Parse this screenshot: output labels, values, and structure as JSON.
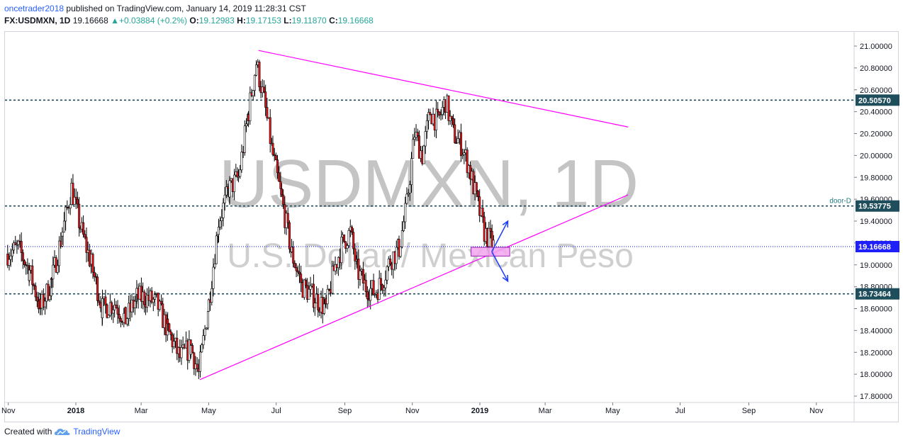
{
  "header": {
    "author": "oncetrader2018",
    "published": "published on TradingView.com, January 14, 2019 11:28:31 CST",
    "symbol": "FX:USDMXN, 1D",
    "last": "19.16668",
    "change": "+0.03884 (+0.2%)",
    "open_label": "O:",
    "open": "19.12983",
    "high_label": "H:",
    "high": "19.17153",
    "low_label": "L:",
    "low": "19.11870",
    "close_label": "C:",
    "close": "19.16668"
  },
  "watermark": {
    "symbol": "USDMXN, 1D",
    "description": "U.S. Dollar / Mexican Peso"
  },
  "footer": {
    "created_with": "Created with",
    "brand": "TradingView"
  },
  "colors": {
    "up": "#ffffff",
    "down": "#e8171c",
    "wick": "#000000",
    "trendline": "#ff00ff",
    "hline": "#1e4e5c",
    "price_line": "#0a0aff",
    "arrow": "#1a3cff",
    "box_fill": "#f4a6f0"
  },
  "chart_data": {
    "type": "candlestick",
    "symbol": "USDMXN",
    "interval": "1D",
    "ylim": [
      17.7,
      21.2
    ],
    "y_ticks": [
      "17.80000",
      "18.00000",
      "18.20000",
      "18.40000",
      "18.60000",
      "18.80000",
      "19.00000",
      "19.20000",
      "19.40000",
      "19.60000",
      "19.80000",
      "20.00000",
      "20.20000",
      "20.40000",
      "20.60000",
      "20.80000",
      "21.00000"
    ],
    "x_ticks": [
      "Nov",
      "2018",
      "Mar",
      "May",
      "Jul",
      "Sep",
      "Nov",
      "2019",
      "Mar",
      "May",
      "Jul",
      "Sep",
      "Nov"
    ],
    "price_levels": [
      {
        "value": 20.5057,
        "label": "20.50570"
      },
      {
        "value": 19.53775,
        "label": "19.53775",
        "note": "door-D"
      },
      {
        "value": 18.73464,
        "label": "18.73464"
      }
    ],
    "last_price": {
      "value": 19.16668,
      "label": "19.16668"
    },
    "trendlines": [
      {
        "from": [
          "2018-04-23",
          17.95
        ],
        "to": [
          "2019-05-15",
          19.64
        ]
      },
      {
        "from": [
          "2018-06-15",
          20.96
        ],
        "to": [
          "2019-05-15",
          20.26
        ]
      }
    ],
    "projection_box": {
      "from": [
        "2019-01-02",
        19.08
      ],
      "to": [
        "2019-01-28",
        19.16
      ]
    },
    "projection_arrows": [
      {
        "from": [
          "2019-01-15",
          19.12
        ],
        "to": [
          "2019-01-25",
          19.4
        ]
      },
      {
        "from": [
          "2019-01-15",
          19.12
        ],
        "to": [
          "2019-01-25",
          18.85
        ]
      }
    ],
    "close_path": [
      [
        "2017-10-30",
        19.1
      ],
      [
        "2017-11-10",
        19.15
      ],
      [
        "2017-11-20",
        18.95
      ],
      [
        "2017-11-30",
        18.6
      ],
      [
        "2017-12-10",
        18.85
      ],
      [
        "2017-12-20",
        19.3
      ],
      [
        "2017-12-28",
        19.7
      ],
      [
        "2018-01-05",
        19.35
      ],
      [
        "2018-01-15",
        19.0
      ],
      [
        "2018-01-25",
        18.6
      ],
      [
        "2018-02-05",
        18.65
      ],
      [
        "2018-02-15",
        18.5
      ],
      [
        "2018-02-25",
        18.7
      ],
      [
        "2018-03-05",
        18.7
      ],
      [
        "2018-03-15",
        18.65
      ],
      [
        "2018-03-25",
        18.4
      ],
      [
        "2018-04-05",
        18.15
      ],
      [
        "2018-04-15",
        18.25
      ],
      [
        "2018-04-22",
        18.0
      ],
      [
        "2018-05-01",
        18.65
      ],
      [
        "2018-05-10",
        19.4
      ],
      [
        "2018-05-20",
        19.7
      ],
      [
        "2018-05-28",
        19.8
      ],
      [
        "2018-06-06",
        20.4
      ],
      [
        "2018-06-13",
        20.85
      ],
      [
        "2018-06-20",
        20.5
      ],
      [
        "2018-06-28",
        20.0
      ],
      [
        "2018-07-06",
        19.6
      ],
      [
        "2018-07-15",
        19.1
      ],
      [
        "2018-07-25",
        18.8
      ],
      [
        "2018-08-05",
        18.7
      ],
      [
        "2018-08-15",
        18.6
      ],
      [
        "2018-08-22",
        18.95
      ],
      [
        "2018-08-30",
        19.2
      ],
      [
        "2018-09-06",
        19.3
      ],
      [
        "2018-09-12",
        18.95
      ],
      [
        "2018-09-20",
        18.8
      ],
      [
        "2018-09-28",
        18.75
      ],
      [
        "2018-10-05",
        18.85
      ],
      [
        "2018-10-12",
        19.05
      ],
      [
        "2018-10-20",
        19.15
      ],
      [
        "2018-10-27",
        19.55
      ],
      [
        "2018-11-03",
        20.2
      ],
      [
        "2018-11-10",
        20.0
      ],
      [
        "2018-11-17",
        20.4
      ],
      [
        "2018-11-24",
        20.3
      ],
      [
        "2018-12-01",
        20.5
      ],
      [
        "2018-12-08",
        20.2
      ],
      [
        "2018-12-15",
        20.1
      ],
      [
        "2018-12-22",
        19.9
      ],
      [
        "2018-12-29",
        19.6
      ],
      [
        "2019-01-05",
        19.3
      ],
      [
        "2019-01-14",
        19.16668
      ]
    ]
  }
}
